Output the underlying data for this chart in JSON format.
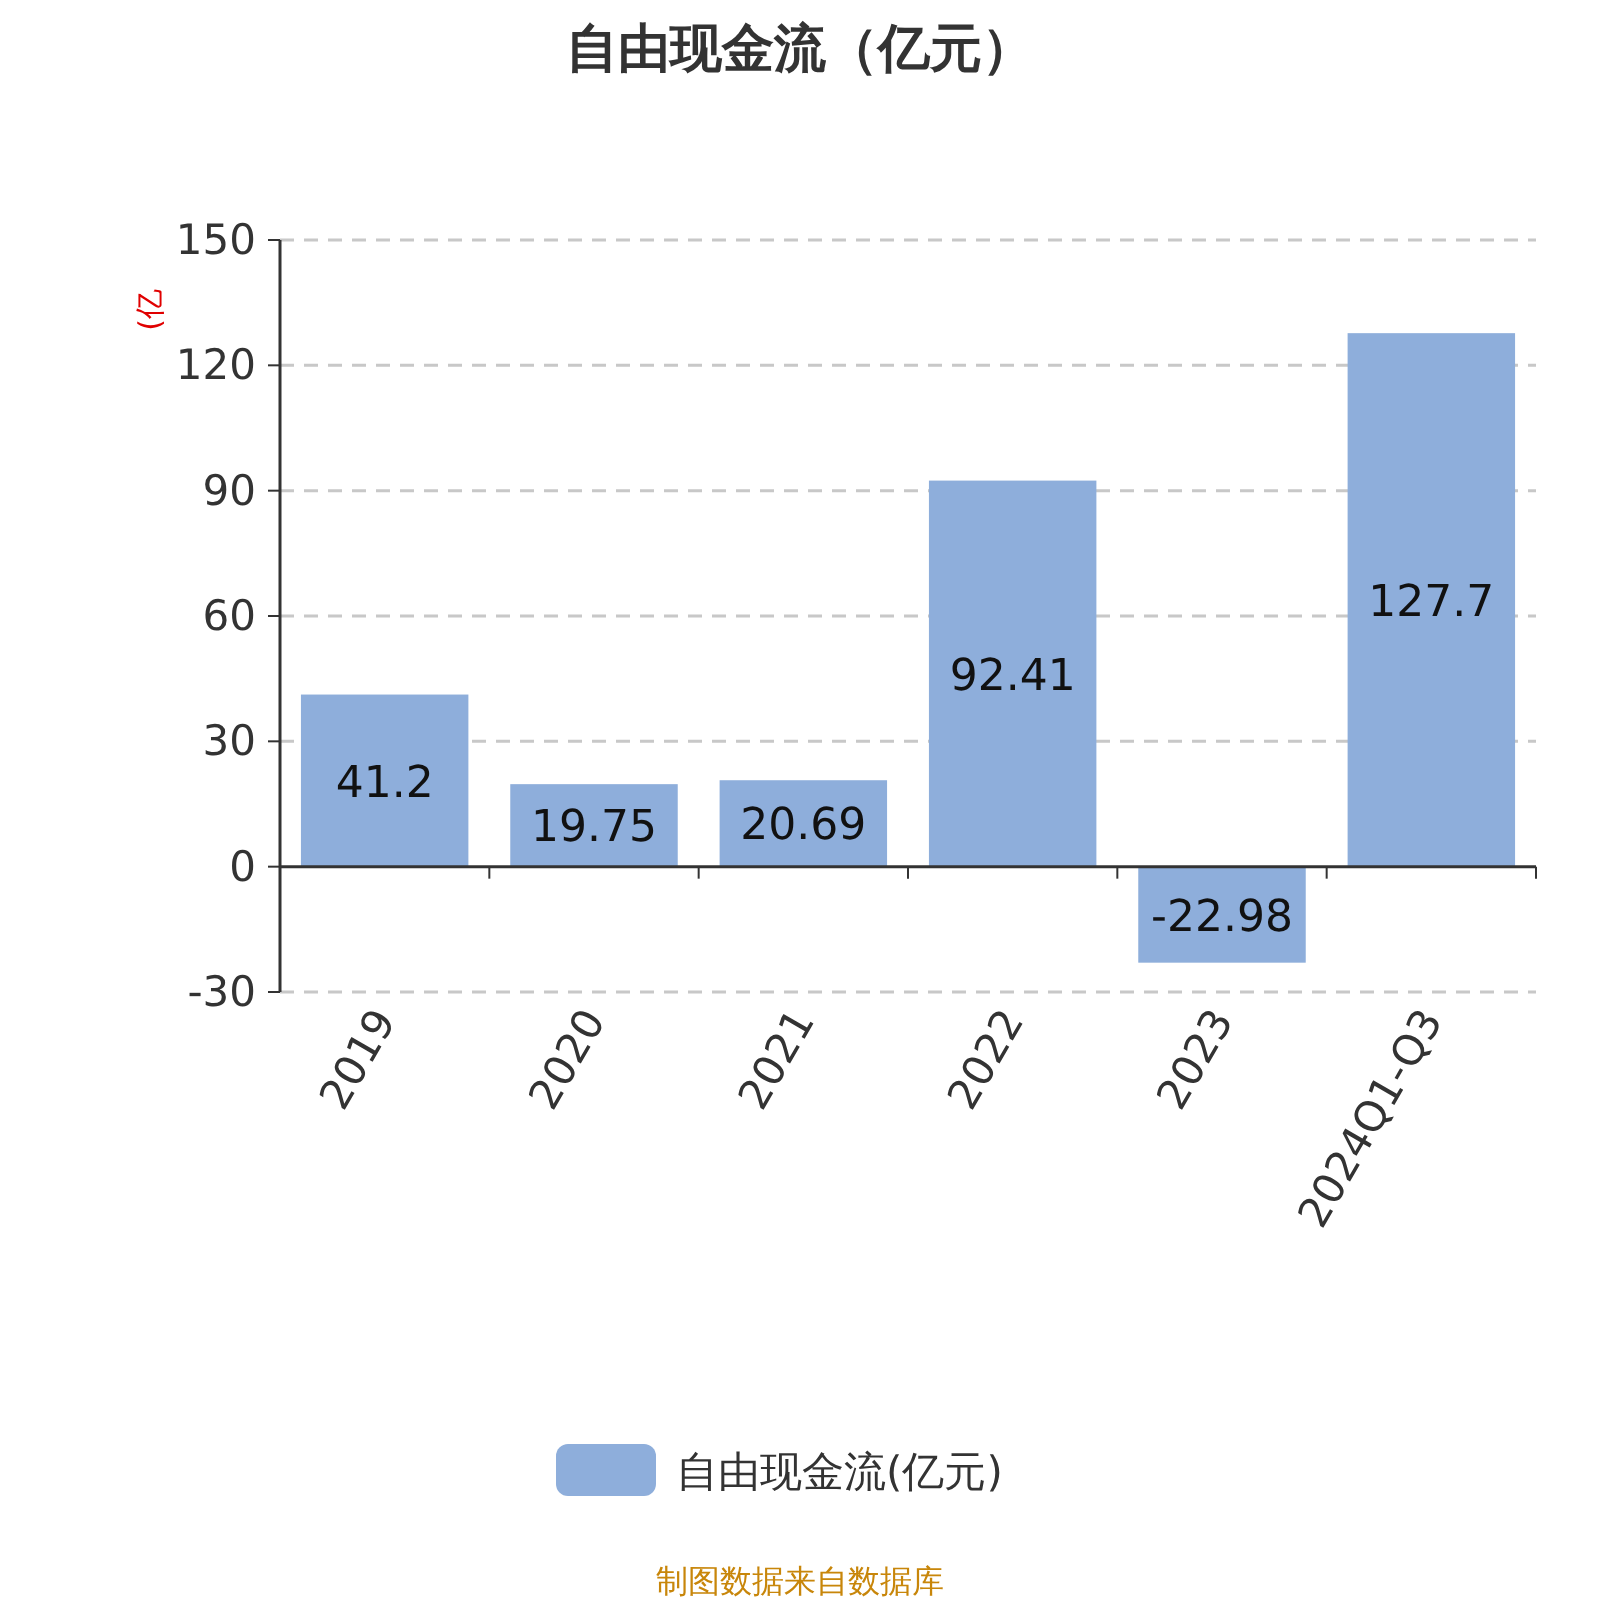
{
  "chart_data": {
    "type": "bar",
    "title": "自由现金流（亿元）",
    "ylabel": "(亿",
    "categories": [
      "2019",
      "2020",
      "2021",
      "2022",
      "2023",
      "2024Q1-Q3"
    ],
    "series": [
      {
        "name": "自由现金流(亿元)",
        "color": "#8eaedb",
        "values": [
          41.2,
          19.75,
          20.69,
          92.41,
          -22.98,
          127.7
        ]
      }
    ],
    "ylim": [
      -30,
      150
    ],
    "yticks": [
      -30,
      0,
      30,
      60,
      90,
      120,
      150
    ],
    "grid": "y",
    "legend": "bottom",
    "data_labels": true,
    "annotations": [
      "制图数据来自数据库"
    ]
  }
}
